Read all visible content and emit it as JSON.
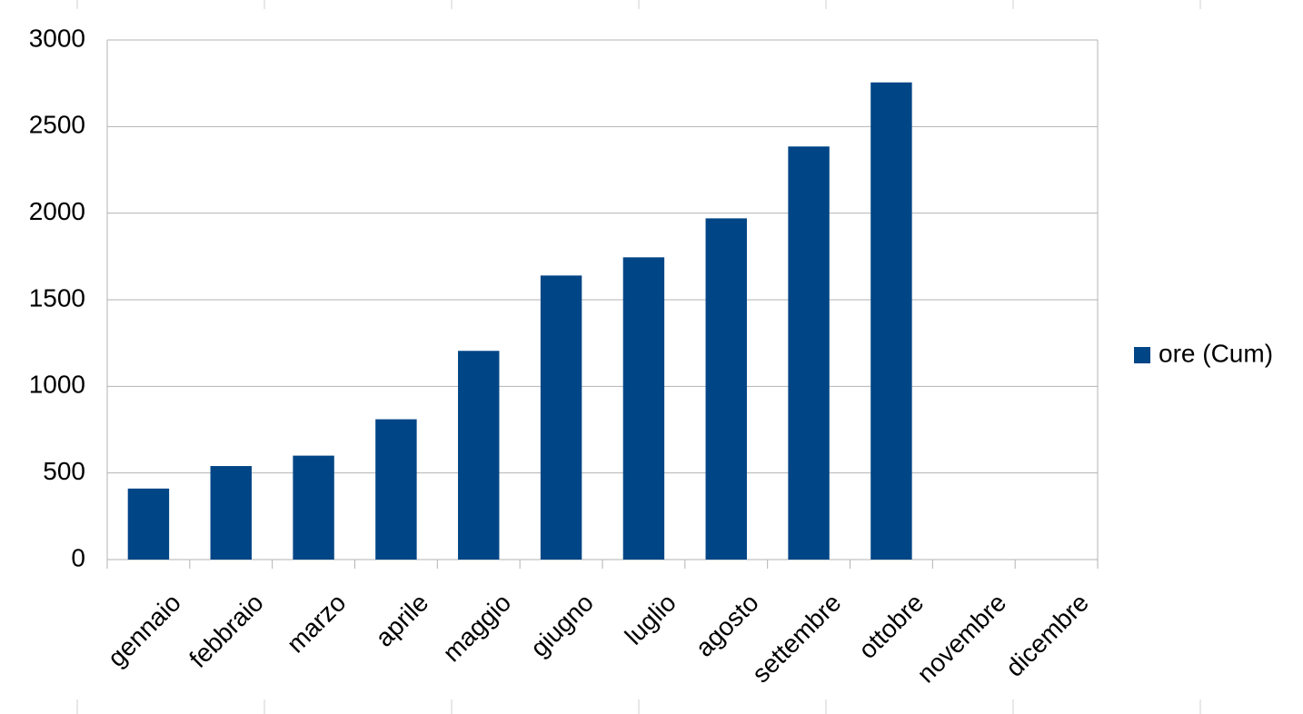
{
  "chart_data": {
    "type": "bar",
    "categories": [
      "gennaio",
      "febbraio",
      "marzo",
      "aprile",
      "maggio",
      "giugno",
      "luglio",
      "agosto",
      "settembre",
      "ottobre",
      "novembre",
      "dicembre"
    ],
    "series": [
      {
        "name": "ore (Cum)",
        "color": "#004586",
        "values": [
          410,
          540,
          600,
          810,
          1205,
          1640,
          1745,
          1970,
          2385,
          2755,
          null,
          null
        ]
      }
    ],
    "ylim": [
      0,
      3000
    ],
    "yticks": [
      0,
      500,
      1000,
      1500,
      2000,
      2500,
      3000
    ],
    "grid": true,
    "legend": "right"
  }
}
